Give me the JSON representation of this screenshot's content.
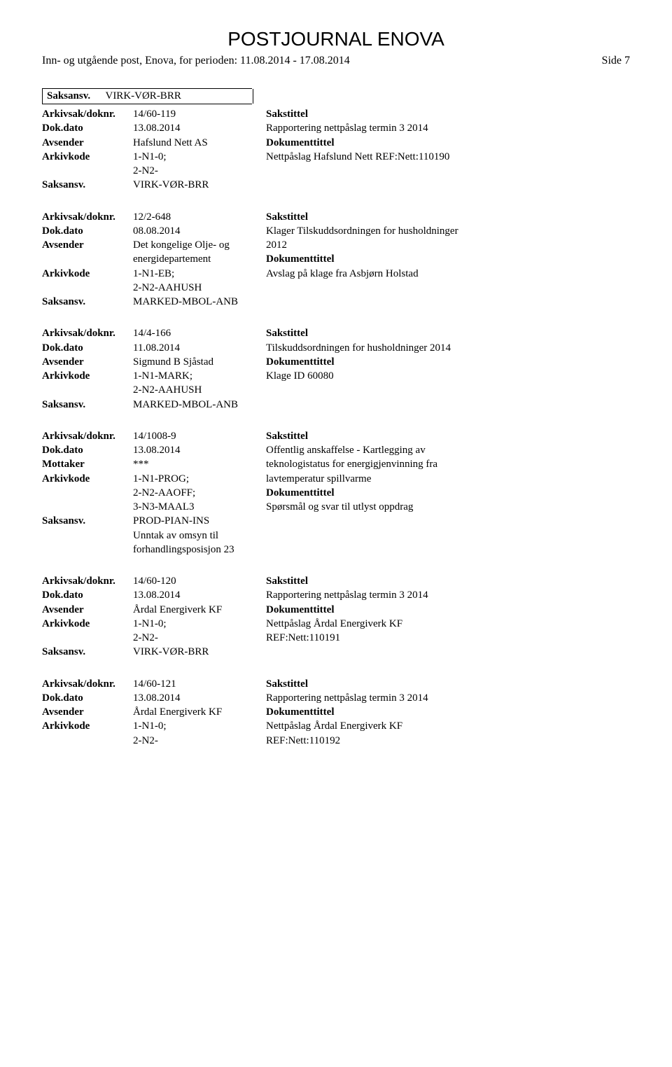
{
  "header": {
    "title": "POSTJOURNAL ENOVA",
    "subheader": "Inn- og utgående post, Enova, for perioden: 11.08.2014 - 17.08.2014",
    "side": "Side 7"
  },
  "field_labels": {
    "saksansv": "Saksansv.",
    "arkivsak": "Arkivsak/doknr.",
    "dokdato": "Dok.dato",
    "avsender": "Avsender",
    "mottaker": "Mottaker",
    "arkivkode": "Arkivkode",
    "sakstittel": "Sakstittel",
    "dokumenttittel": "Dokumenttittel"
  },
  "topbar": {
    "saksansv": "VIRK-VØR-BRR"
  },
  "entries": [
    {
      "arkivsak": "14/60-119",
      "dokdato": "13.08.2014",
      "party_label": "Avsender",
      "party_value": "Hafslund Nett AS",
      "arkivkode_lines": [
        "1-N1-0;",
        "2-N2-"
      ],
      "saksansv": "VIRK-VØR-BRR",
      "sakstittel_lines": [
        "Rapportering nettpåslag termin 3 2014"
      ],
      "doktittel_lines": [
        "Nettpåslag Hafslund Nett  REF:Nett:110190"
      ],
      "extras": []
    },
    {
      "arkivsak": "12/2-648",
      "dokdato": "08.08.2014",
      "party_label": "Avsender",
      "party_value": "Det kongelige Olje- og",
      "party_value_extra": "energidepartement",
      "arkivkode_lines": [
        "1-N1-EB;",
        "2-N2-AAHUSH"
      ],
      "saksansv": "MARKED-MBOL-ANB",
      "sakstittel_lines": [
        "Klager Tilskuddsordningen for husholdninger",
        "2012"
      ],
      "doktittel_lines": [
        "Avslag på klage fra Asbjørn Holstad"
      ],
      "extras": []
    },
    {
      "arkivsak": "14/4-166",
      "dokdato": "11.08.2014",
      "party_label": "Avsender",
      "party_value": "Sigmund B Sjåstad",
      "arkivkode_lines": [
        "1-N1-MARK;",
        "2-N2-AAHUSH"
      ],
      "saksansv": "MARKED-MBOL-ANB",
      "sakstittel_lines": [
        "Tilskuddsordningen for husholdninger 2014"
      ],
      "doktittel_lines": [
        "Klage ID 60080"
      ],
      "extras": []
    },
    {
      "arkivsak": "14/1008-9",
      "dokdato": "13.08.2014",
      "party_label": "Mottaker",
      "party_value": "***",
      "arkivkode_lines": [
        "1-N1-PROG;",
        "2-N2-AAOFF;",
        "3-N3-MAAL3"
      ],
      "saksansv": "PROD-PIAN-INS",
      "sakstittel_lines": [
        "Offentlig anskaffelse - Kartlegging av",
        "teknologistatus for energigjenvinning fra",
        "lavtemperatur spillvarme"
      ],
      "doktittel_lines": [
        "Spørsmål og svar til utlyst oppdrag"
      ],
      "extras": [
        "Unntak av omsyn til",
        "forhandlingsposisjon 23"
      ]
    },
    {
      "arkivsak": "14/60-120",
      "dokdato": "13.08.2014",
      "party_label": "Avsender",
      "party_value": "Årdal Energiverk KF",
      "arkivkode_lines": [
        "1-N1-0;",
        "2-N2-"
      ],
      "saksansv": "VIRK-VØR-BRR",
      "sakstittel_lines": [
        "Rapportering nettpåslag termin 3 2014"
      ],
      "doktittel_lines": [
        "Nettpåslag Årdal Energiverk KF",
        "REF:Nett:110191"
      ],
      "extras": []
    },
    {
      "arkivsak": "14/60-121",
      "dokdato": "13.08.2014",
      "party_label": "Avsender",
      "party_value": "Årdal Energiverk KF",
      "arkivkode_lines": [
        "1-N1-0;",
        "2-N2-"
      ],
      "saksansv": "",
      "sakstittel_lines": [
        "Rapportering nettpåslag termin 3 2014"
      ],
      "doktittel_lines": [
        "Nettpåslag Årdal Energiverk KF",
        "REF:Nett:110192"
      ],
      "extras": []
    }
  ]
}
